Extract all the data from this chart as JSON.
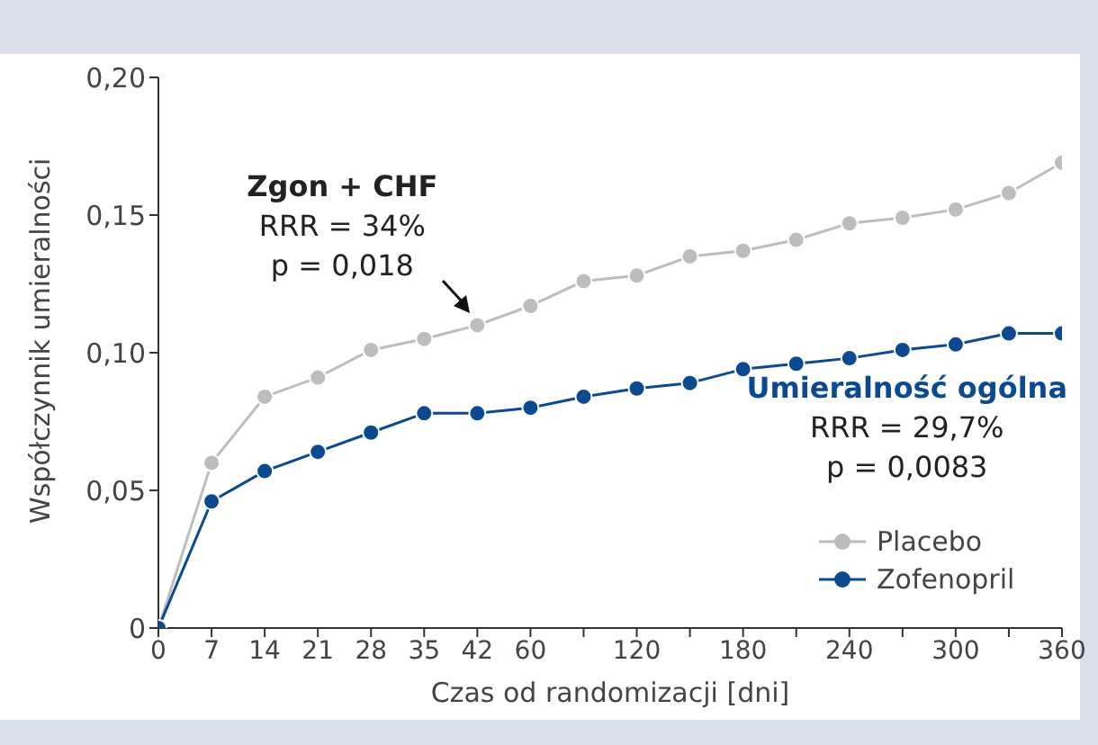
{
  "chart_data": {
    "type": "line",
    "xlabel": "Czas od randomizacji [dni]",
    "ylabel": "Współczynnik umieralności",
    "categories": [
      "0",
      "7",
      "14",
      "21",
      "28",
      "35",
      "42",
      "60",
      null,
      "120",
      null,
      "180",
      null,
      "240",
      null,
      "300",
      null,
      "360"
    ],
    "series": [
      {
        "name": "Placebo",
        "color": "#bdbdbd",
        "values": [
          0,
          0.06,
          0.084,
          0.091,
          0.101,
          0.105,
          0.11,
          0.117,
          0.126,
          0.128,
          0.135,
          0.137,
          0.141,
          0.147,
          0.149,
          0.152,
          0.158,
          0.169
        ]
      },
      {
        "name": "Zofenopril",
        "color": "#0b4a91",
        "values": [
          0,
          0.046,
          0.057,
          0.064,
          0.071,
          0.078,
          0.078,
          0.08,
          0.084,
          0.087,
          0.089,
          0.094,
          0.096,
          0.098,
          0.101,
          0.103,
          0.107,
          0.107
        ]
      }
    ],
    "ylim": [
      0,
      0.2
    ],
    "yticks": [
      {
        "value": 0,
        "label": "0"
      },
      {
        "value": 0.05,
        "label": "0,05"
      },
      {
        "value": 0.1,
        "label": "0,10"
      },
      {
        "value": 0.15,
        "label": "0,15"
      },
      {
        "value": 0.2,
        "label": "0,20"
      }
    ],
    "annotations": [
      {
        "text": "Zgon + CHF\nRRR = 34%\np = 0,018",
        "x": "42",
        "y": 0.11
      },
      {
        "text": "Umieralność ogólna\nRRR = 29,7%\np = 0,0083",
        "x": "240",
        "y": 0.098
      }
    ],
    "grid": false,
    "legend": "bottom right",
    "marker": "circle",
    "line_style": "solid"
  }
}
